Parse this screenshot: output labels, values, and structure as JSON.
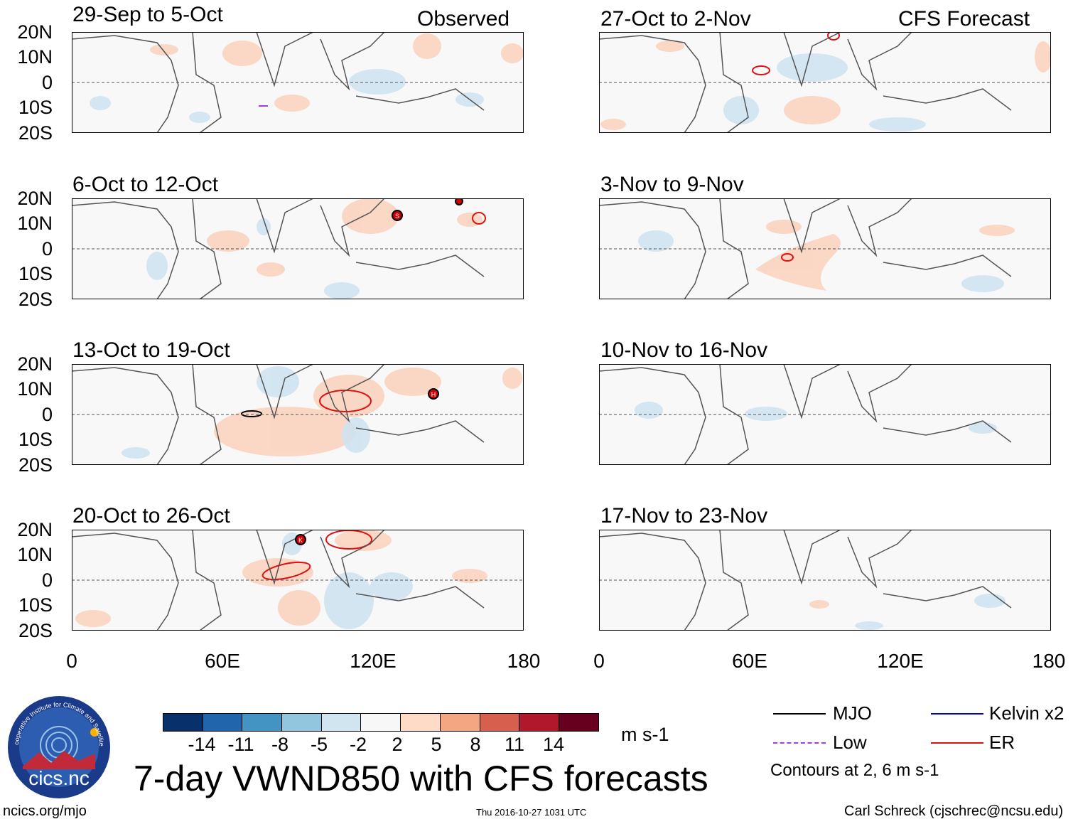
{
  "observed_label": "Observed",
  "forecast_label": "CFS Forecast",
  "panels_left": [
    "29-Sep to 5-Oct",
    "6-Oct to 12-Oct",
    "13-Oct to 19-Oct",
    "20-Oct to 26-Oct"
  ],
  "panels_right": [
    "27-Oct to 2-Nov",
    "3-Nov to 9-Nov",
    "10-Nov to 16-Nov",
    "17-Nov to 23-Nov"
  ],
  "y_ticks": [
    "20N",
    "10N",
    "0",
    "10S",
    "20S"
  ],
  "x_ticks": [
    "0",
    "60E",
    "120E",
    "180"
  ],
  "colorbar": {
    "colors": [
      "#08306b",
      "#2166ac",
      "#4393c3",
      "#92c5de",
      "#d1e5f0",
      "#f7f7f7",
      "#fddbc7",
      "#f4a582",
      "#d6604d",
      "#b2182b",
      "#67001f"
    ],
    "labels": [
      "-14",
      "-11",
      "-8",
      "-5",
      "-2",
      "2",
      "5",
      "8",
      "11",
      "14"
    ],
    "units": "m s-1"
  },
  "title": "7-day VWND850 with CFS forecasts",
  "legend": {
    "mjo": "MJO",
    "kelvin": "Kelvin x2",
    "low": "Low",
    "er": "ER",
    "contours": "Contours at 2, 6 m s-1",
    "colors": {
      "mjo": "#000000",
      "kelvin": "#0000dd",
      "low": "#a040e0",
      "er": "#e01010"
    }
  },
  "logo": {
    "text": "cics.nc",
    "ring_text": "Cooperative Institute for Climate and Satellites"
  },
  "footer": {
    "left": "ncics.org/mjo",
    "center": "Thu 2016-10-27 1031 UTC",
    "right": "Carl Schreck (cjschrec@ncsu.edu)"
  },
  "storms": [
    "S",
    "H",
    "K"
  ]
}
